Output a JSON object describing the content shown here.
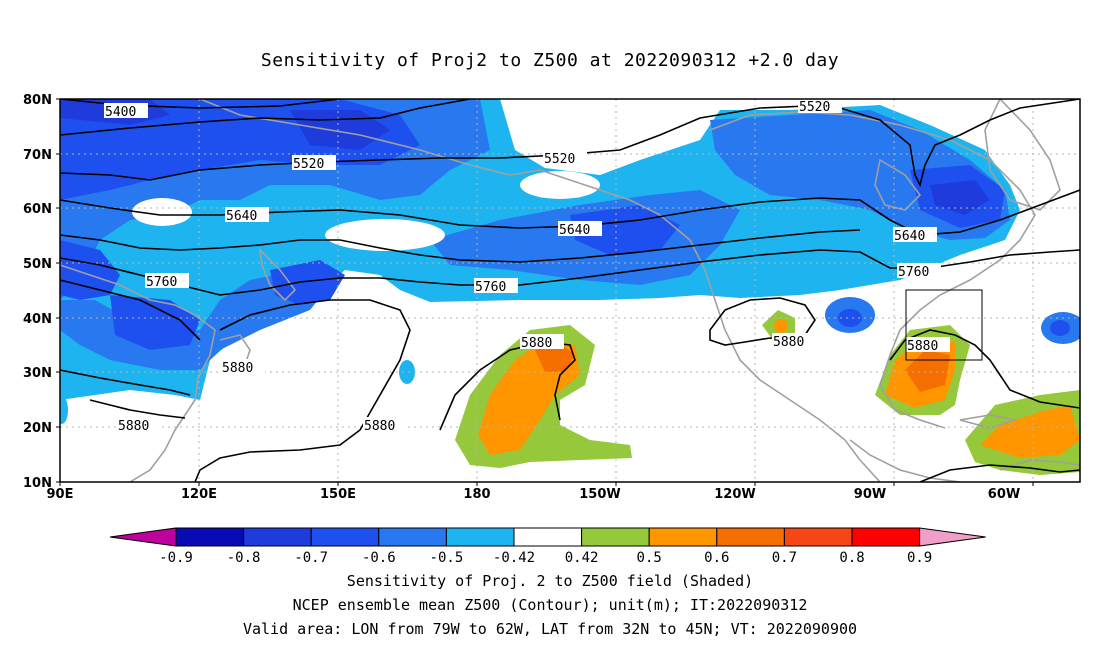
{
  "title": "Sensitivity of Proj2 to Z500 at 2022090312 +2.0 day",
  "map": {
    "lat_labels": [
      "80N",
      "70N",
      "60N",
      "50N",
      "40N",
      "30N",
      "20N",
      "10N"
    ],
    "lon_labels": [
      "90E",
      "120E",
      "150E",
      "180",
      "150W",
      "120W",
      "90W",
      "60W"
    ],
    "extent": {
      "lon_min": 90,
      "lon_max": 310,
      "lat_min": 10,
      "lat_max": 80
    },
    "contour_labels": [
      "5400",
      "5520",
      "5520",
      "5520",
      "5640",
      "5640",
      "5640",
      "5760",
      "5760",
      "5760",
      "5880",
      "5880",
      "5880",
      "5880",
      "5880",
      "5880"
    ],
    "valid_area": {
      "lon": [
        "79W",
        "62W"
      ],
      "lat": [
        "32N",
        "45N"
      ]
    }
  },
  "colorbar": {
    "labels": [
      "-0.9",
      "-0.8",
      "-0.7",
      "-0.6",
      "-0.5",
      "-0.42",
      "0.42",
      "0.5",
      "0.6",
      "0.7",
      "0.8",
      "0.9"
    ],
    "colors": [
      "#c0009c",
      "#0a0ab4",
      "#1e3cdc",
      "#1e50f0",
      "#2878f0",
      "#1eb4f0",
      "#ffffff",
      "#96c83c",
      "#ff9600",
      "#f56e00",
      "#f54614",
      "#ff0000",
      "#f0a0c8"
    ]
  },
  "captions": [
    "Sensitivity of Proj. 2 to Z500 field (Shaded)",
    "NCEP ensemble mean Z500 (Contour); unit(m); IT:2022090312",
    "Valid area: LON from 79W to 62W, LAT from 32N to 45N; VT: 2022090900"
  ]
}
